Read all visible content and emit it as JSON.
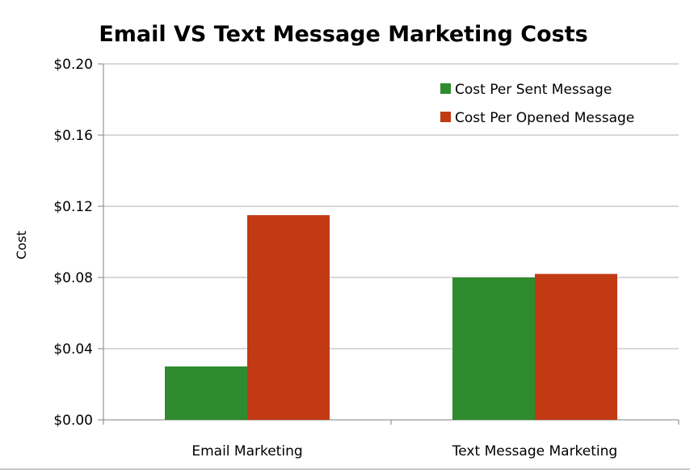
{
  "chart_data": {
    "type": "bar",
    "title": "Email VS Text Message Marketing Costs",
    "xlabel": "",
    "ylabel": "Cost",
    "categories": [
      "Email Marketing",
      "Text Message Marketing"
    ],
    "series": [
      {
        "name": "Cost Per Sent Message",
        "values": [
          0.03,
          0.08
        ],
        "color": "#2e8b2e"
      },
      {
        "name": "Cost Per Opened Message",
        "values": [
          0.115,
          0.082
        ],
        "color": "#c23a14"
      }
    ],
    "ylim": [
      0,
      0.2
    ],
    "yticks": [
      0,
      0.04,
      0.08,
      0.12,
      0.16,
      0.2
    ],
    "ytick_labels": [
      "$0.00",
      "$0.04",
      "$0.08",
      "$0.12",
      "$0.16",
      "$0.20"
    ],
    "grid": true,
    "legend_position": "top-right"
  }
}
